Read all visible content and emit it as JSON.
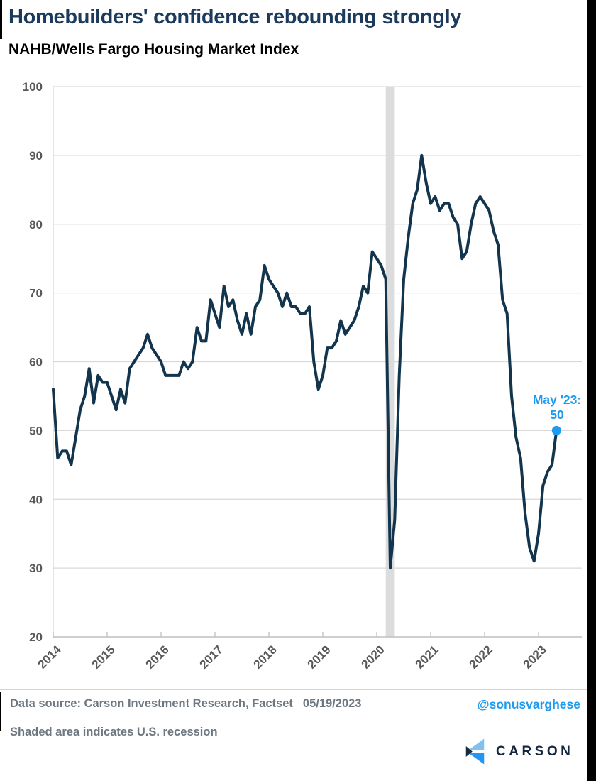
{
  "header": {
    "title": "Homebuilders' confidence rebounding strongly",
    "subtitle": "NAHB/Wells Fargo Housing Market Index"
  },
  "chart_data": {
    "type": "line",
    "title": "NAHB/Wells Fargo Housing Market Index",
    "frequency": "monthly",
    "x_start": "2014-01",
    "x_end": "2023-05",
    "values": [
      56,
      46,
      47,
      47,
      45,
      49,
      53,
      55,
      59,
      54,
      58,
      57,
      57,
      55,
      53,
      56,
      54,
      59,
      60,
      61,
      62,
      64,
      62,
      61,
      60,
      58,
      58,
      58,
      58,
      60,
      59,
      60,
      65,
      63,
      63,
      69,
      67,
      65,
      71,
      68,
      69,
      66,
      64,
      67,
      64,
      68,
      69,
      74,
      72,
      71,
      70,
      68,
      70,
      68,
      68,
      67,
      67,
      68,
      60,
      56,
      58,
      62,
      62,
      63,
      66,
      64,
      65,
      66,
      68,
      71,
      70,
      76,
      75,
      74,
      72,
      30,
      37,
      58,
      72,
      78,
      83,
      85,
      90,
      86,
      83,
      84,
      82,
      83,
      83,
      81,
      80,
      75,
      76,
      80,
      83,
      84,
      83,
      82,
      79,
      77,
      69,
      67,
      55,
      49,
      46,
      38,
      33,
      31,
      35,
      42,
      44,
      45,
      50
    ],
    "ylim": [
      20,
      100
    ],
    "y_ticks": [
      100,
      90,
      80,
      70,
      60,
      50,
      40,
      30,
      20
    ],
    "x_ticks": [
      "2014",
      "2015",
      "2016",
      "2017",
      "2018",
      "2019",
      "2020",
      "2021",
      "2022",
      "2023"
    ],
    "grid": "horizontal",
    "legend": "none",
    "line_color": "#12344d",
    "grid_color": "#d9d9d9",
    "axis_color": "#bfbfbf",
    "tick_label_color": "#595959",
    "recession_band": {
      "start": "2020-03",
      "end": "2020-04",
      "color": "#dcdcdc"
    },
    "annotation": {
      "line1": "May '23:",
      "line2": "50",
      "x": "2023-05",
      "value": 50,
      "color": "#1d9bf0"
    }
  },
  "footer": {
    "data_source": "Data source: Carson Investment Research, Factset",
    "date": "05/19/2023",
    "handle": "@sonusvarghese",
    "shaded_note": "Shaded area indicates U.S. recession",
    "brand": "CARSON"
  },
  "colors": {
    "title": "#1c3a5c",
    "accent_blue": "#1d9bf0",
    "line_navy": "#12344d",
    "logo_light_blue": "#81c1f2",
    "logo_blue": "#2196f3",
    "logo_navy": "#16293f"
  }
}
